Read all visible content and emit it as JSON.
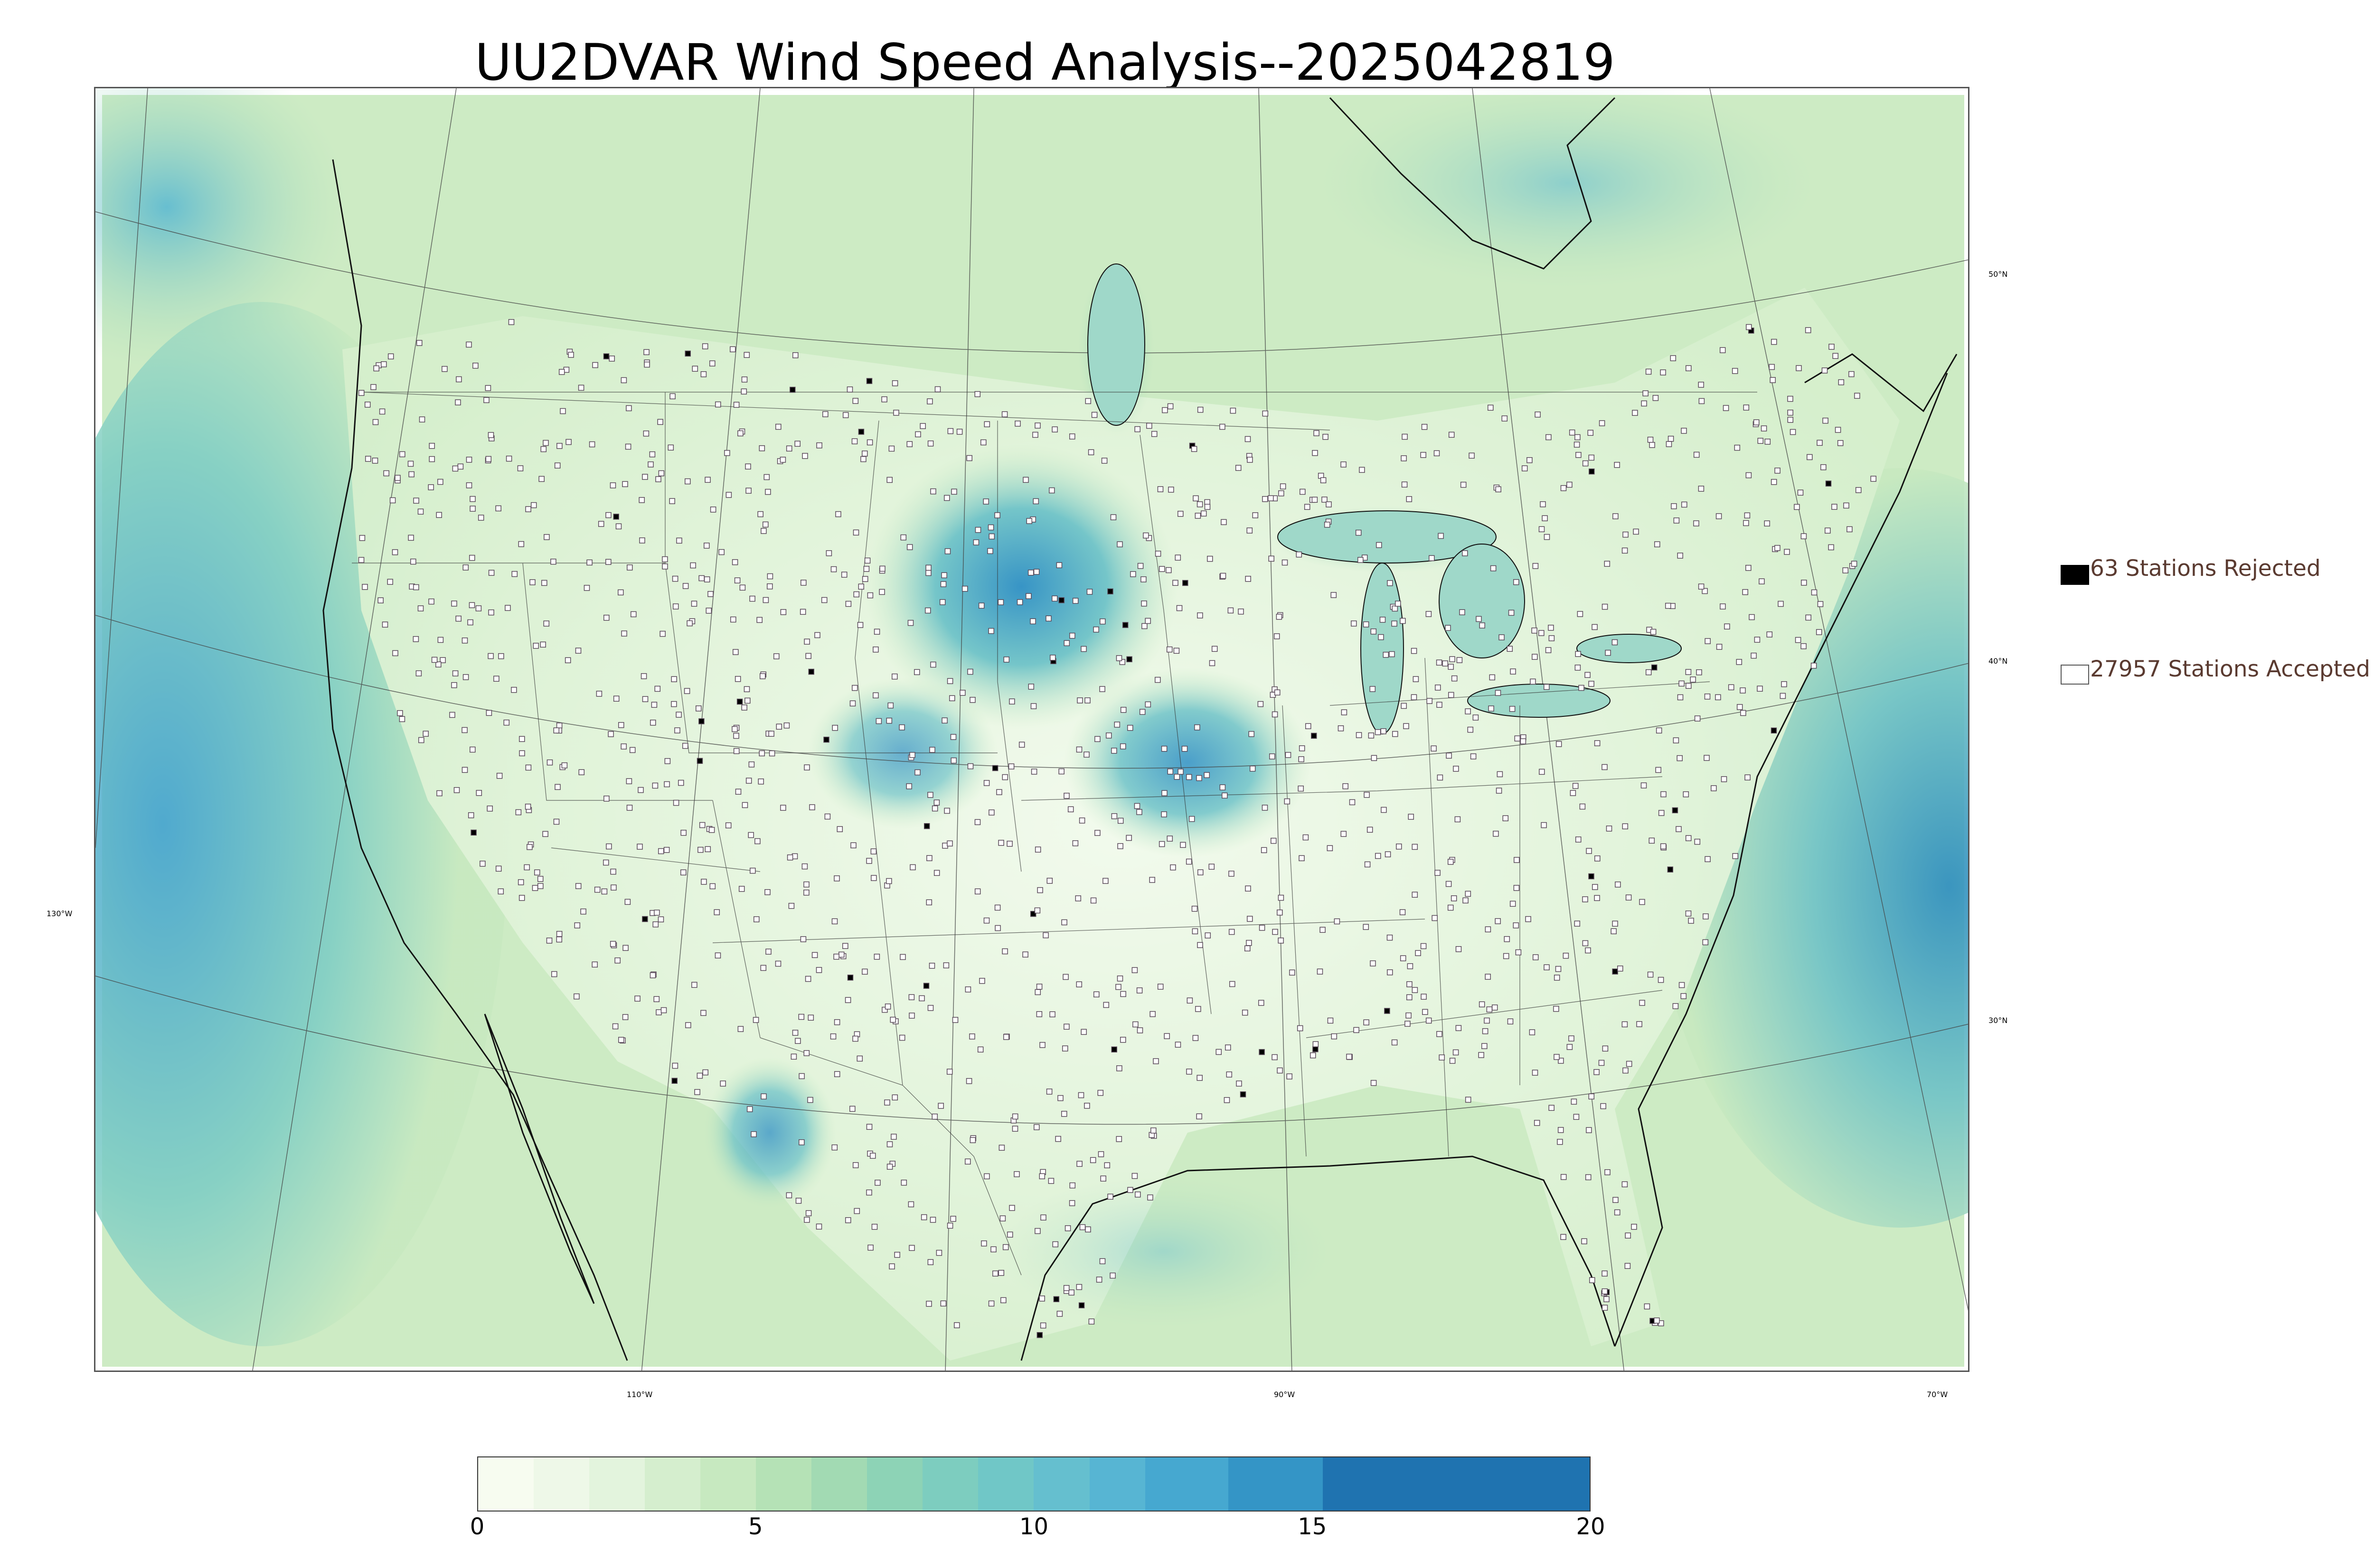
{
  "title": "UU2DVAR Wind Speed Analysis--2025042819",
  "map": {
    "lat_labels": [
      "50°N",
      "40°N",
      "30°N"
    ],
    "lon_labels": [
      "130°W",
      "110°W",
      "90°W",
      "70°W"
    ],
    "colors": {
      "calm": "#f7fcf0",
      "light": "#e0f3db",
      "moderate": "#a8ddb5",
      "fresh": "#7bccc4",
      "strong": "#4eb3d3",
      "gale": "#2b8cbe",
      "storm": "#1d6fb0",
      "border": "#000000"
    }
  },
  "legend": {
    "rejected_label": "63 Stations Rejected",
    "accepted_label": "27957 Stations Accepted"
  },
  "colorbar": {
    "ticks": [
      "0",
      "5",
      "10",
      "15",
      "20"
    ],
    "min": 0,
    "max": 20,
    "segments": [
      {
        "from": 0,
        "to": 1,
        "color": "#f7fcf0"
      },
      {
        "from": 1,
        "to": 2,
        "color": "#eef8e8"
      },
      {
        "from": 2,
        "to": 3,
        "color": "#e3f4dd"
      },
      {
        "from": 3,
        "to": 4,
        "color": "#d5eece"
      },
      {
        "from": 4,
        "to": 5,
        "color": "#c7e9c0"
      },
      {
        "from": 5,
        "to": 6,
        "color": "#b5e2b6"
      },
      {
        "from": 6,
        "to": 7,
        "color": "#a2dab3"
      },
      {
        "from": 7,
        "to": 8,
        "color": "#8dd3b6"
      },
      {
        "from": 8,
        "to": 9,
        "color": "#7dcdbf"
      },
      {
        "from": 9,
        "to": 10,
        "color": "#70c7c7"
      },
      {
        "from": 10,
        "to": 11,
        "color": "#65bfcf"
      },
      {
        "from": 11,
        "to": 12,
        "color": "#57b5d3"
      },
      {
        "from": 12,
        "to": 13.5,
        "color": "#46a8d0"
      },
      {
        "from": 13.5,
        "to": 15.2,
        "color": "#3495c6"
      },
      {
        "from": 15.2,
        "to": 20,
        "color": "#1f73b0"
      }
    ]
  }
}
